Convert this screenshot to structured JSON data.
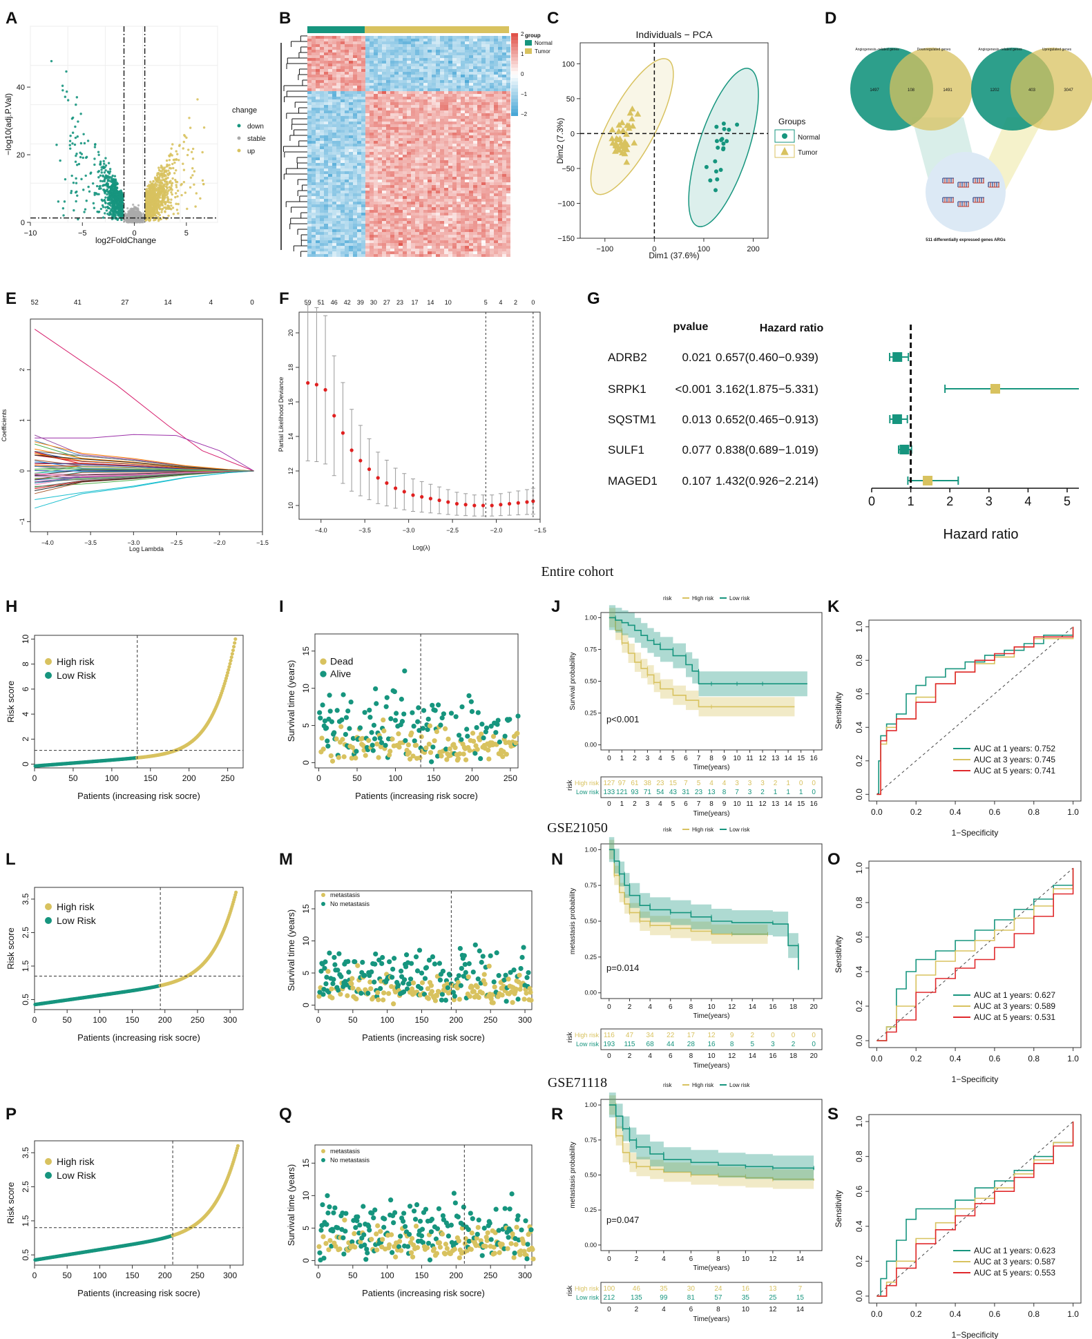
{
  "colors": {
    "teal": "#16957e",
    "gold": "#d8c25f",
    "red": "#e0282b",
    "heat_red": "#e0534a",
    "heat_blue": "#4aa7d6"
  },
  "panel_letters": [
    "A",
    "B",
    "C",
    "D",
    "E",
    "F",
    "G",
    "H",
    "I",
    "J",
    "K",
    "L",
    "M",
    "N",
    "O",
    "P",
    "Q",
    "R",
    "S"
  ],
  "cohort_titles": [
    "Entire cohort",
    "GSE21050",
    "GSE71118"
  ],
  "panel_a": {
    "xlabel": "log2FoldChange",
    "ylabel": "−log10(adj.P.Val)",
    "xticks": [
      "−10",
      "−5",
      "0",
      "5"
    ],
    "yticks": [
      "0",
      "20",
      "40"
    ],
    "legend_title": "change",
    "legend": [
      "down",
      "stable",
      "up"
    ]
  },
  "panel_b": {
    "legend_title": "group",
    "groups": [
      "Normal",
      "Tumor"
    ],
    "scale": [
      "2",
      "1",
      "0",
      "−1",
      "−2"
    ]
  },
  "panel_c": {
    "title": "Individuals − PCA",
    "xlabel": "Dim1 (37.6%)",
    "ylabel": "Dim2 (7.3%)",
    "xticks": [
      "−100",
      "0",
      "100",
      "200"
    ],
    "yticks": [
      "100",
      "50",
      "0",
      "−50",
      "−100",
      "−150"
    ],
    "legend_title": "Groups",
    "groups": [
      "Normal",
      "Tumor"
    ]
  },
  "panel_d": {
    "venn_left": {
      "a": "Angiogenesis−related genes",
      "b": "Downregulated genes",
      "left": "1497",
      "mid": "108",
      "right": "1491"
    },
    "venn_right": {
      "a": "Angiogenesis−related genes",
      "b": "Upregulated genes",
      "left": "1202",
      "mid": "403",
      "right": "3047"
    },
    "caption": "511 differentially expressed genes ARGs"
  },
  "panel_e": {
    "xlabel": "Log Lambda",
    "ylabel": "Coefficients",
    "top": [
      "52",
      "41",
      "27",
      "14",
      "4",
      "0"
    ],
    "xticks": [
      "−4.0",
      "−3.5",
      "−3.0",
      "−2.5",
      "−2.0",
      "−1.5"
    ],
    "yticks": [
      "−1",
      "0",
      "1",
      "2"
    ]
  },
  "panel_f": {
    "xlabel": "Log(λ)",
    "ylabel": "Partial Likelihood Deviance",
    "top": [
      "59",
      "51",
      "46",
      "42",
      "39",
      "30",
      "27",
      "23",
      "17",
      "14",
      "10",
      "5",
      "4",
      "2",
      "0"
    ],
    "xticks": [
      "−4.0",
      "−3.5",
      "−3.0",
      "−2.5",
      "−2.0",
      "−1.5"
    ],
    "yticks": [
      "10",
      "12",
      "14",
      "16",
      "18",
      "20"
    ]
  },
  "panel_g": {
    "col_pvalue": "pvalue",
    "col_hr": "Hazard ratio",
    "xlabel": "Hazard ratio",
    "xticks": [
      "0",
      "1",
      "2",
      "3",
      "4",
      "5"
    ],
    "rows": [
      {
        "gene": "ADRB2",
        "p": "0.021",
        "hr": "0.657(0.460−0.939)"
      },
      {
        "gene": "SRPK1",
        "p": "<0.001",
        "hr": "3.162(1.875−5.331)"
      },
      {
        "gene": "SQSTM1",
        "p": "0.013",
        "hr": "0.652(0.465−0.913)"
      },
      {
        "gene": "SULF1",
        "p": "0.077",
        "hr": "0.838(0.689−1.019)"
      },
      {
        "gene": "MAGED1",
        "p": "0.107",
        "hr": "1.432(0.926−2.214)"
      }
    ]
  },
  "risk_labels": {
    "xlabel": "Patients (increasing risk socre)",
    "ylabel": "Risk score",
    "ylabel_surv": "Survival time (years)",
    "high": "High risk",
    "low": "Low Risk"
  },
  "panel_h": {
    "xticks": [
      "0",
      "50",
      "100",
      "150",
      "200",
      "250"
    ],
    "yticks": [
      "0",
      "2",
      "4",
      "6",
      "8",
      "10"
    ]
  },
  "panel_i": {
    "xticks": [
      "0",
      "50",
      "100",
      "150",
      "200",
      "250"
    ],
    "yticks": [
      "0",
      "5",
      "10",
      "15"
    ],
    "legend": [
      "Dead",
      "Alive"
    ]
  },
  "panel_l": {
    "xticks": [
      "0",
      "50",
      "100",
      "150",
      "200",
      "250",
      "300"
    ],
    "yticks": [
      "0.5",
      "1.5",
      "2.5",
      "3.5"
    ]
  },
  "panel_m": {
    "xticks": [
      "0",
      "50",
      "100",
      "150",
      "200",
      "250",
      "300"
    ],
    "yticks": [
      "0",
      "5",
      "10",
      "15"
    ],
    "legend": [
      "metastasis",
      "No metastasis"
    ]
  },
  "panel_p": {
    "xticks": [
      "0",
      "50",
      "100",
      "150",
      "200",
      "250",
      "300"
    ],
    "yticks": [
      "0.5",
      "1.5",
      "2.5",
      "3.5"
    ]
  },
  "panel_q": {
    "xticks": [
      "0",
      "50",
      "100",
      "150",
      "200",
      "250",
      "300"
    ],
    "yticks": [
      "0",
      "5",
      "10",
      "15"
    ],
    "legend": [
      "metastasis",
      "No metastasis"
    ]
  },
  "km_common": {
    "legend_title": "risk",
    "high": "High risk",
    "low": "Low risk",
    "xlabel": "Time(years)",
    "risk_title": "risk"
  },
  "panel_j": {
    "ylabel": "Survival probability",
    "pvalue": "p<0.001",
    "yticks": [
      "0.00",
      "0.25",
      "0.50",
      "0.75",
      "1.00"
    ],
    "xticks": [
      "0",
      "1",
      "2",
      "3",
      "4",
      "5",
      "6",
      "7",
      "8",
      "9",
      "10",
      "11",
      "12",
      "13",
      "14",
      "15",
      "16"
    ],
    "high_label": "High risk",
    "low_label": "Low risk",
    "high_counts": [
      "127",
      "97",
      "61",
      "38",
      "23",
      "15",
      "7",
      "5",
      "4",
      "4",
      "3",
      "3",
      "3",
      "2",
      "1",
      "0",
      "0"
    ],
    "low_counts": [
      "133",
      "121",
      "93",
      "71",
      "54",
      "43",
      "31",
      "23",
      "13",
      "8",
      "7",
      "3",
      "2",
      "1",
      "1",
      "1",
      "0"
    ]
  },
  "panel_n": {
    "ylabel": "metastasis probability",
    "pvalue": "p=0.014",
    "yticks": [
      "0.00",
      "0.25",
      "0.50",
      "0.75",
      "1.00"
    ],
    "xticks": [
      "0",
      "2",
      "4",
      "6",
      "8",
      "10",
      "12",
      "14",
      "16",
      "18",
      "20"
    ],
    "high_label": "High risk",
    "low_label": "Low risk",
    "high_counts": [
      "116",
      "47",
      "34",
      "22",
      "17",
      "12",
      "9",
      "2",
      "0",
      "0",
      "0"
    ],
    "low_counts": [
      "193",
      "115",
      "68",
      "44",
      "28",
      "16",
      "8",
      "5",
      "3",
      "2",
      "0"
    ]
  },
  "panel_r": {
    "ylabel": "metastasis probability",
    "pvalue": "p=0.047",
    "yticks": [
      "0.00",
      "0.25",
      "0.50",
      "0.75",
      "1.00"
    ],
    "xticks": [
      "0",
      "2",
      "4",
      "6",
      "8",
      "10",
      "12",
      "14"
    ],
    "high_label": "High risk",
    "low_label": "Low risk",
    "high_counts": [
      "100",
      "46",
      "35",
      "30",
      "24",
      "16",
      "13",
      "7"
    ],
    "low_counts": [
      "212",
      "135",
      "99",
      "81",
      "57",
      "35",
      "25",
      "15"
    ]
  },
  "roc_common": {
    "xlabel": "1−Specificity",
    "ylabel": "Sensitivity",
    "ticks": [
      "0.0",
      "0.2",
      "0.4",
      "0.6",
      "0.8",
      "1.0"
    ]
  },
  "panel_k": {
    "auc": [
      "AUC at 1 years: 0.752",
      "AUC at 3 years: 0.745",
      "AUC at 5 years: 0.741"
    ]
  },
  "panel_o": {
    "auc": [
      "AUC at 1 years: 0.627",
      "AUC at 3 years: 0.589",
      "AUC at 5 years: 0.531"
    ]
  },
  "panel_s": {
    "auc": [
      "AUC at 1 years: 0.623",
      "AUC at 3 years: 0.587",
      "AUC at 5 years: 0.553"
    ]
  },
  "chart_data": [
    {
      "type": "scatter",
      "panel": "A",
      "title": "Volcano plot",
      "xlabel": "log2FoldChange",
      "ylabel": "−log10(adj.P.Val)",
      "xlim": [
        -10,
        8
      ],
      "ylim": [
        0,
        58
      ],
      "series": [
        "down",
        "stable",
        "up"
      ]
    },
    {
      "type": "heatmap",
      "panel": "B",
      "groups": [
        "Normal",
        "Tumor"
      ],
      "scale": [
        -2,
        2
      ]
    },
    {
      "type": "scatter",
      "panel": "C",
      "title": "Individuals − PCA",
      "xlabel": "Dim1 (37.6%)",
      "ylabel": "Dim2 (7.3%)",
      "xlim": [
        -150,
        230
      ],
      "ylim": [
        -150,
        130
      ]
    },
    {
      "type": "line",
      "panel": "E",
      "xlabel": "Log Lambda",
      "ylabel": "Coefficients",
      "xlim": [
        -4.2,
        -1.5
      ],
      "ylim": [
        -1.2,
        3
      ]
    },
    {
      "type": "line",
      "panel": "F",
      "xlabel": "Log(λ)",
      "ylabel": "Partial Likelihood Deviance",
      "x": [
        -4.15,
        -4.05,
        -3.95,
        -3.85,
        -3.75,
        -3.65,
        -3.55,
        -3.45,
        -3.35,
        -3.25,
        -3.15,
        -3.05,
        -2.95,
        -2.85,
        -2.75,
        -2.65,
        -2.55,
        -2.45,
        -2.35,
        -2.25,
        -2.15,
        -2.05,
        -1.95,
        -1.85,
        -1.75,
        -1.65,
        -1.58
      ],
      "values": [
        17.1,
        17.0,
        16.7,
        15.2,
        14.2,
        13.2,
        12.6,
        12.1,
        11.6,
        11.3,
        11.0,
        10.8,
        10.6,
        10.5,
        10.4,
        10.3,
        10.2,
        10.1,
        10.05,
        10.0,
        10.0,
        10.0,
        10.05,
        10.1,
        10.15,
        10.2,
        10.25
      ],
      "vlines": [
        -2.12,
        -1.58
      ]
    },
    {
      "type": "bar",
      "panel": "G",
      "title": "Forest plot",
      "categories": [
        "ADRB2",
        "SRPK1",
        "SQSTM1",
        "SULF1",
        "MAGED1"
      ],
      "values": [
        0.657,
        3.162,
        0.652,
        0.838,
        1.432
      ],
      "lower": [
        0.46,
        1.875,
        0.465,
        0.689,
        0.926
      ],
      "upper": [
        0.939,
        5.331,
        0.913,
        1.019,
        2.214
      ],
      "xlabel": "Hazard ratio",
      "xlim": [
        0,
        5.3
      ]
    },
    {
      "type": "line",
      "panel": "J",
      "series": [
        {
          "name": "High risk",
          "x": [
            0,
            0.5,
            1,
            1.5,
            2,
            2.5,
            3,
            3.5,
            4,
            5,
            6,
            7,
            8,
            10,
            12,
            14.5
          ],
          "values": [
            1,
            0.9,
            0.8,
            0.72,
            0.65,
            0.6,
            0.55,
            0.49,
            0.44,
            0.39,
            0.35,
            0.3,
            0.3,
            0.3,
            0.3,
            0.3
          ]
        },
        {
          "name": "Low risk",
          "x": [
            0,
            0.5,
            1,
            1.5,
            2,
            2.5,
            3,
            3.5,
            4,
            5,
            6,
            6.5,
            7,
            8,
            10,
            12,
            15.5
          ],
          "values": [
            1,
            0.98,
            0.96,
            0.94,
            0.9,
            0.86,
            0.82,
            0.79,
            0.75,
            0.7,
            0.63,
            0.58,
            0.48,
            0.48,
            0.48,
            0.48,
            0.48
          ]
        }
      ],
      "pvalue": "p<0.001"
    },
    {
      "type": "line",
      "panel": "N",
      "series": [
        {
          "name": "High risk",
          "x": [
            0,
            0.5,
            1,
            1.5,
            2,
            3,
            4,
            6,
            8,
            10,
            12,
            15.5
          ],
          "values": [
            1,
            0.82,
            0.7,
            0.62,
            0.56,
            0.5,
            0.47,
            0.45,
            0.43,
            0.41,
            0.41,
            0.41
          ]
        },
        {
          "name": "Low risk",
          "x": [
            0,
            0.5,
            1,
            1.5,
            2,
            3,
            4,
            6,
            8,
            10,
            12,
            16,
            17.5,
            18.5
          ],
          "values": [
            1,
            0.92,
            0.83,
            0.75,
            0.68,
            0.61,
            0.58,
            0.56,
            0.53,
            0.5,
            0.49,
            0.48,
            0.33,
            0.16
          ]
        }
      ],
      "pvalue": "p=0.014"
    },
    {
      "type": "line",
      "panel": "R",
      "series": [
        {
          "name": "High risk",
          "x": [
            0,
            0.5,
            1,
            1.5,
            2,
            3,
            4,
            6,
            8,
            10,
            12,
            15
          ],
          "values": [
            1,
            0.78,
            0.66,
            0.59,
            0.56,
            0.54,
            0.52,
            0.5,
            0.49,
            0.48,
            0.47,
            0.46
          ]
        },
        {
          "name": "Low risk",
          "x": [
            0,
            0.5,
            1,
            1.5,
            2,
            3,
            4,
            6,
            8,
            10,
            12,
            15
          ],
          "values": [
            1,
            0.92,
            0.83,
            0.75,
            0.7,
            0.65,
            0.61,
            0.59,
            0.57,
            0.56,
            0.55,
            0.54
          ]
        }
      ],
      "pvalue": "p=0.047"
    },
    {
      "type": "line",
      "panel": "K",
      "xlabel": "1−Specificity",
      "ylabel": "Sensitivity",
      "series": [
        {
          "name": "AUC at 1 years: 0.752",
          "x": [
            0,
            0.01,
            0.02,
            0.05,
            0.1,
            0.15,
            0.2,
            0.25,
            0.35,
            0.45,
            0.55,
            0.65,
            0.75,
            0.85,
            1
          ],
          "values": [
            0,
            0.2,
            0.35,
            0.42,
            0.48,
            0.6,
            0.65,
            0.7,
            0.75,
            0.79,
            0.83,
            0.86,
            0.9,
            0.95,
            1
          ]
        },
        {
          "name": "AUC at 3 years: 0.745",
          "x": [
            0,
            0.02,
            0.05,
            0.1,
            0.2,
            0.3,
            0.4,
            0.5,
            0.6,
            0.7,
            0.8,
            1
          ],
          "values": [
            0,
            0.3,
            0.4,
            0.45,
            0.58,
            0.66,
            0.73,
            0.78,
            0.82,
            0.88,
            0.93,
            1
          ]
        },
        {
          "name": "AUC at 5 years: 0.741",
          "x": [
            0,
            0.02,
            0.05,
            0.1,
            0.2,
            0.3,
            0.4,
            0.5,
            0.6,
            0.7,
            0.8,
            1
          ],
          "values": [
            0,
            0.32,
            0.38,
            0.45,
            0.55,
            0.66,
            0.73,
            0.8,
            0.84,
            0.88,
            0.94,
            1
          ]
        }
      ]
    },
    {
      "type": "line",
      "panel": "O",
      "xlabel": "1−Specificity",
      "ylabel": "Sensitivity",
      "series": [
        {
          "name": "AUC at 1 years: 0.627",
          "x": [
            0,
            0.05,
            0.1,
            0.15,
            0.2,
            0.3,
            0.4,
            0.5,
            0.6,
            0.7,
            0.8,
            0.9,
            1
          ],
          "values": [
            0,
            0.08,
            0.3,
            0.4,
            0.47,
            0.52,
            0.58,
            0.64,
            0.7,
            0.76,
            0.82,
            0.9,
            1
          ]
        },
        {
          "name": "AUC at 3 years: 0.589",
          "x": [
            0,
            0.05,
            0.1,
            0.2,
            0.3,
            0.4,
            0.5,
            0.6,
            0.7,
            0.8,
            0.9,
            1
          ],
          "values": [
            0,
            0.08,
            0.2,
            0.38,
            0.46,
            0.52,
            0.58,
            0.64,
            0.71,
            0.78,
            0.88,
            1
          ]
        },
        {
          "name": "AUC at 5 years: 0.531",
          "x": [
            0,
            0.05,
            0.1,
            0.2,
            0.3,
            0.4,
            0.5,
            0.6,
            0.7,
            0.8,
            0.9,
            1
          ],
          "values": [
            0,
            0.05,
            0.12,
            0.28,
            0.36,
            0.42,
            0.47,
            0.54,
            0.62,
            0.72,
            0.85,
            1
          ]
        }
      ]
    },
    {
      "type": "line",
      "panel": "S",
      "xlabel": "1−Specificity",
      "ylabel": "Sensitivity",
      "series": [
        {
          "name": "AUC at 1 years: 0.623",
          "x": [
            0,
            0.02,
            0.05,
            0.1,
            0.15,
            0.2,
            0.3,
            0.4,
            0.5,
            0.6,
            0.7,
            0.8,
            0.9,
            1
          ],
          "values": [
            0,
            0.1,
            0.2,
            0.32,
            0.44,
            0.5,
            0.5,
            0.55,
            0.62,
            0.66,
            0.72,
            0.8,
            0.88,
            1
          ]
        },
        {
          "name": "AUC at 3 years: 0.587",
          "x": [
            0,
            0.05,
            0.1,
            0.2,
            0.3,
            0.4,
            0.5,
            0.6,
            0.7,
            0.8,
            0.9,
            1
          ],
          "values": [
            0,
            0.08,
            0.2,
            0.33,
            0.42,
            0.5,
            0.56,
            0.62,
            0.7,
            0.78,
            0.88,
            1
          ]
        },
        {
          "name": "AUC at 5 years: 0.553",
          "x": [
            0,
            0.05,
            0.1,
            0.2,
            0.3,
            0.4,
            0.5,
            0.6,
            0.7,
            0.8,
            0.9,
            1
          ],
          "values": [
            0,
            0.06,
            0.16,
            0.3,
            0.38,
            0.46,
            0.53,
            0.6,
            0.68,
            0.76,
            0.86,
            1
          ]
        }
      ]
    }
  ]
}
